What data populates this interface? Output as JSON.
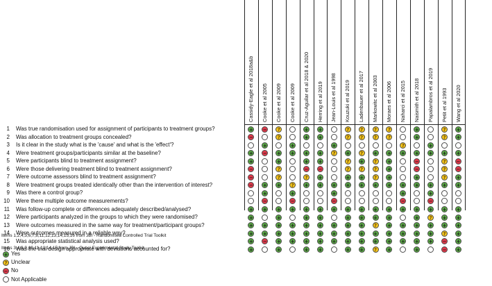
{
  "studies": [
    "Cassidy-Eagle et al 2018a&b",
    "Cooke et al 2005",
    "Cooke et al 2009",
    "Cooke et al 2009",
    "Cruz-Aguilar et al 2018 & 2020",
    "Herring et al 2019",
    "Jean-Louis et al 1998",
    "Kouzuki et al 2019",
    "Ladenbauer et al 2017",
    "Markowitc et al 2003",
    "Moraes et al 2006",
    "Naharci et al 2015",
    "Naismith et al 2018",
    "Papalambros et al 2019",
    "Petit et al 1993",
    "Wang et al 2020"
  ],
  "questions": [
    {
      "num": "1",
      "text": "Was true randomisation used for assignment of participants to treatment groups?",
      "ratings": [
        "Y",
        "N",
        "U",
        "NA",
        "Y",
        "Y",
        "NA",
        "U",
        "U",
        "U",
        "U",
        "NA",
        "Y",
        "NA",
        "U",
        "Y"
      ]
    },
    {
      "num": "2",
      "text": "Was allocation to treatment groups concealed?",
      "ratings": [
        "N",
        "NA",
        "U",
        "NA",
        "Y",
        "Y",
        "NA",
        "U",
        "U",
        "U",
        "U",
        "NA",
        "Y",
        "NA",
        "U",
        "Y"
      ]
    },
    {
      "num": "3",
      "text": "Is it clear in the study what is the 'cause' and what is the 'effect'?",
      "ratings": [
        "NA",
        "Y",
        "NA",
        "Y",
        "NA",
        "NA",
        "Y",
        "NA",
        "NA",
        "NA",
        "NA",
        "U",
        "NA",
        "Y",
        "NA",
        "NA"
      ]
    },
    {
      "num": "4",
      "text": "Were treatment groups/participants similar at the baseline?",
      "ratings": [
        "Y",
        "N",
        "Y",
        "Y",
        "Y",
        "Y",
        "U",
        "Y",
        "U",
        "Y",
        "Y",
        "Y",
        "Y",
        "Y",
        "Y",
        "Y"
      ]
    },
    {
      "num": "5",
      "text": "Were participants blind to treatment assignment?",
      "ratings": [
        "Y",
        "NA",
        "Y",
        "NA",
        "Y",
        "Y",
        "NA",
        "U",
        "Y",
        "U",
        "Y",
        "NA",
        "N",
        "NA",
        "U",
        "N"
      ]
    },
    {
      "num": "6",
      "text": "Were those delivering treatment blind to treatment assignment?",
      "ratings": [
        "N",
        "NA",
        "U",
        "NA",
        "N",
        "N",
        "NA",
        "U",
        "U",
        "U",
        "Y",
        "NA",
        "N",
        "NA",
        "U",
        "N"
      ]
    },
    {
      "num": "7",
      "text": "Were outcome assessors blind to treatment assignment?",
      "ratings": [
        "N",
        "NA",
        "U",
        "NA",
        "U",
        "Y",
        "NA",
        "Y",
        "Y",
        "U",
        "Y",
        "NA",
        "Y",
        "NA",
        "U",
        "Y"
      ]
    },
    {
      "num": "8",
      "text": "Were treatment groups treated identically other than the intervention of interest?",
      "ratings": [
        "N",
        "Y",
        "Y",
        "U",
        "Y",
        "Y",
        "Y",
        "Y",
        "Y",
        "Y",
        "Y",
        "Y",
        "Y",
        "Y",
        "Y",
        "Y"
      ]
    },
    {
      "num": "9",
      "text": "Was there a control group?",
      "ratings": [
        "NA",
        "Y",
        "NA",
        "Y",
        "NA",
        "NA",
        "Y",
        "NA",
        "NA",
        "NA",
        "NA",
        "Y",
        "NA",
        "Y",
        "NA",
        "NA"
      ]
    },
    {
      "num": "10",
      "text": "Were there multiple outcome measurements?",
      "ratings": [
        "NA",
        "N",
        "NA",
        "N",
        "NA",
        "NA",
        "N",
        "NA",
        "NA",
        "NA",
        "NA",
        "N",
        "NA",
        "N",
        "NA",
        "NA"
      ]
    },
    {
      "num": "11",
      "text": "Was follow-up complete or differences adequately described/analysed?",
      "ratings": [
        "Y",
        "Y",
        "Y",
        "Y",
        "Y",
        "Y",
        "Y",
        "Y",
        "Y",
        "Y",
        "Y",
        "Y",
        "Y",
        "Y",
        "Y",
        "Y"
      ]
    },
    {
      "num": "12",
      "text": "Were participants analyzed in the groups to which they were randomised?",
      "ratings": [
        "Y",
        "NA",
        "Y",
        "NA",
        "Y",
        "Y",
        "NA",
        "Y",
        "Y",
        "Y",
        "Y",
        "NA",
        "Y",
        "U",
        "Y",
        "Y"
      ]
    },
    {
      "num": "13",
      "text": "Were outcomes measured in the same way for treatment/participant groups?",
      "ratings": [
        "Y",
        "Y",
        "Y",
        "Y",
        "Y",
        "Y",
        "Y",
        "Y",
        "Y",
        "U",
        "Y",
        "Y",
        "Y",
        "Y",
        "Y",
        "Y"
      ]
    },
    {
      "num": "14",
      "text": "Were outcomes measured in a reliable way?",
      "ratings": [
        "Y",
        "Y",
        "Y",
        "Y",
        "Y",
        "Y",
        "Y",
        "Y",
        "Y",
        "Y",
        "Y",
        "Y",
        "Y",
        "Y",
        "U",
        "Y"
      ]
    },
    {
      "num": "15",
      "text": "Was appropriate statistical analysis used?",
      "ratings": [
        "Y",
        "N",
        "Y",
        "Y",
        "Y",
        "Y",
        "Y",
        "Y",
        "Y",
        "Y",
        "Y",
        "Y",
        "Y",
        "Y",
        "N",
        "Y"
      ]
    },
    {
      "num": "16",
      "text": "Was the trial design appropriate with deviations accounted for?",
      "ratings": [
        "Y",
        "NA",
        "Y",
        "NA",
        "Y",
        "Y",
        "NA",
        "Y",
        "Y",
        "U",
        "Y",
        "NA",
        "Y",
        "NA",
        "N",
        "Y"
      ]
    }
  ],
  "notes": [
    "Items 1,2,4,5,6,7,8,11,12,13,14,15,16 from JBI - Randomised Controlled Trial Toolkit",
    "Items 3,4,8,9,10,11,13,14,15 from JBI - Quasi Experimental Study Toolkit"
  ],
  "legend": [
    {
      "code": "Y",
      "symbol": "+",
      "label": "Yes"
    },
    {
      "code": "U",
      "symbol": "?",
      "label": "Unclear"
    },
    {
      "code": "N",
      "symbol": "−",
      "label": "No"
    },
    {
      "code": "NA",
      "symbol": "",
      "label": "Not Applicable"
    }
  ],
  "colors": {
    "Y": "#5aa845",
    "U": "#f3c51f",
    "N": "#e2394a",
    "NA": "#ffffff"
  },
  "symbols": {
    "Y": "+",
    "U": "?",
    "N": "−",
    "NA": ""
  }
}
